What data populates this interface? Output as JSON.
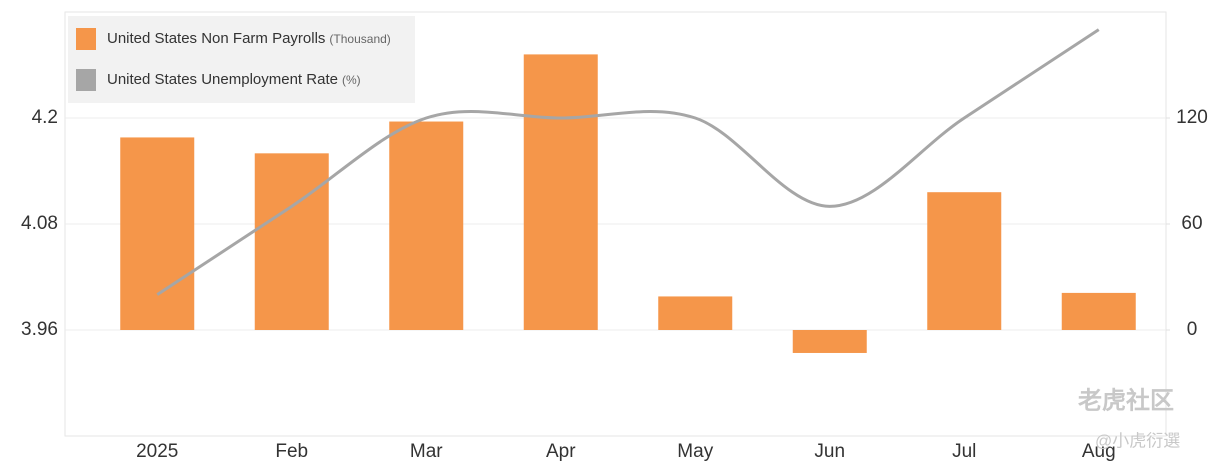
{
  "chart_data": {
    "type": "bar-line",
    "categories": [
      "2025",
      "Feb",
      "Mar",
      "Apr",
      "May",
      "Jun",
      "Jul",
      "Aug"
    ],
    "series": [
      {
        "name": "United States Non Farm Payrolls",
        "unit": "(Thousand)",
        "type": "bar",
        "axis": "y2",
        "color": "#f5964a",
        "values": [
          109,
          100,
          118,
          156,
          19,
          -13,
          78,
          21
        ]
      },
      {
        "name": "United States Unemployment Rate",
        "unit": "(%)",
        "type": "line",
        "axis": "y",
        "color": "#a6a6a6",
        "values": [
          4.0,
          4.1,
          4.2,
          4.2,
          4.2,
          4.1,
          4.2,
          4.3
        ]
      }
    ],
    "ylim": [
      3.84,
      4.32
    ],
    "yticks": [
      3.96,
      4.08,
      4.2
    ],
    "y2lim": [
      -60,
      180
    ],
    "y2ticks": [
      0,
      60,
      120
    ],
    "grid": true,
    "legend": "top-left",
    "watermark": [
      "老虎社区",
      "@小虎衍選"
    ]
  }
}
